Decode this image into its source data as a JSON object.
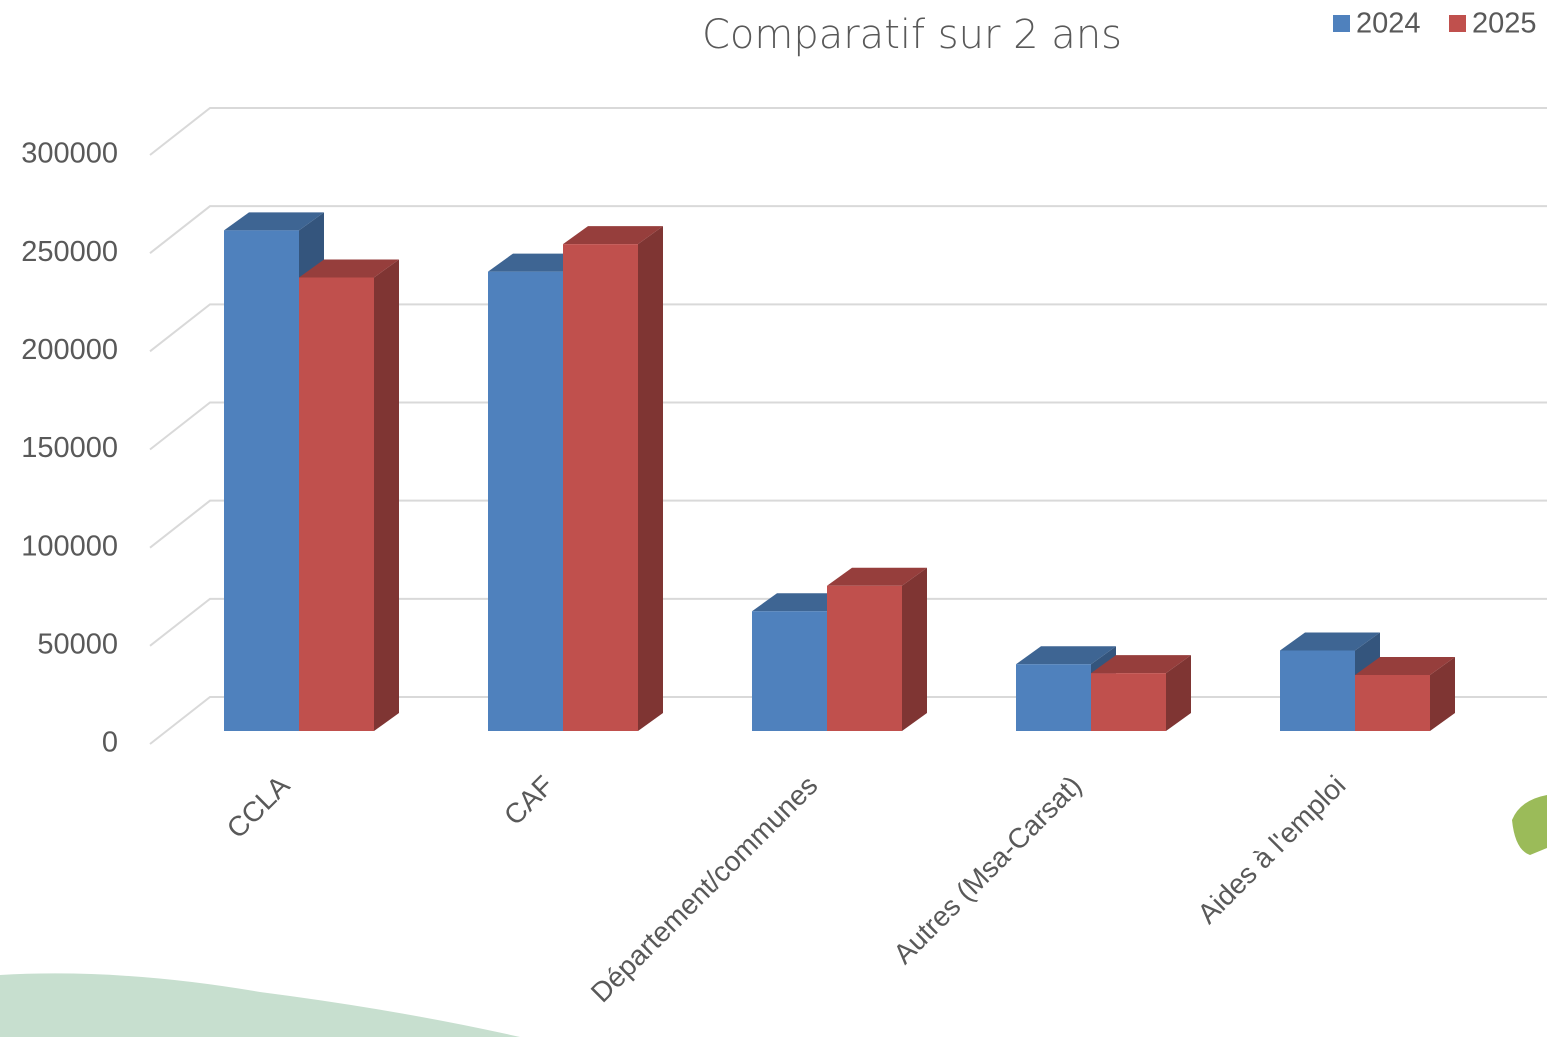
{
  "chart_data": {
    "type": "bar3d",
    "title": "Comparatif sur 2 ans",
    "categories": [
      "CCLA",
      "CAF",
      "Département/communes",
      "Autres (Msa-Carsat)",
      "Aides à l'emploi"
    ],
    "series": [
      {
        "name": "2024",
        "color": "#4f81bd",
        "values": [
          255000,
          234000,
          61000,
          34000,
          41000
        ]
      },
      {
        "name": "2025",
        "color": "#c0504d",
        "values": [
          231000,
          248000,
          74000,
          29500,
          28500
        ]
      }
    ],
    "ylim": [
      0,
      300000
    ],
    "yticks": [
      0,
      50000,
      100000,
      150000,
      200000,
      250000,
      300000
    ],
    "grid": true,
    "legend": "top-right"
  }
}
